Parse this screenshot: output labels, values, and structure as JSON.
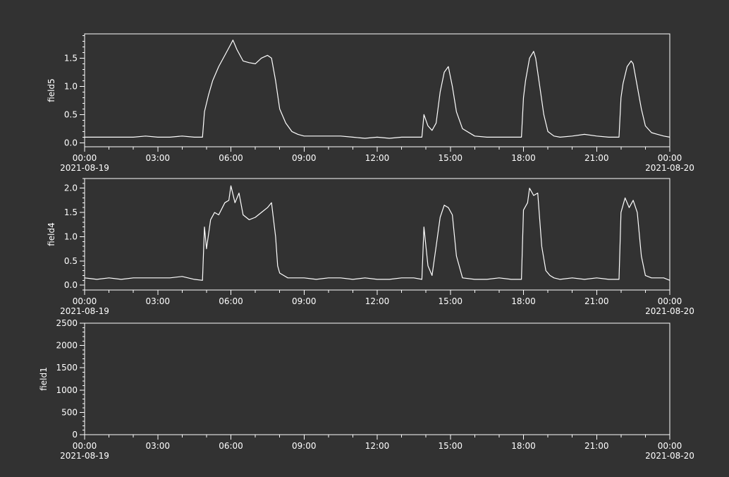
{
  "colors": {
    "background": "#323232",
    "foreground": "#ffffff"
  },
  "chart_data": [
    {
      "type": "line",
      "ylabel": "field5",
      "ylim": [
        -0.07,
        1.93
      ],
      "y_ticks": [
        "0.0",
        "0.5",
        "1.0",
        "1.5"
      ],
      "y_tick_values": [
        0,
        0.5,
        1.0,
        1.5
      ],
      "x_tick_labels": [
        "00:00",
        "03:00",
        "06:00",
        "09:00",
        "12:00",
        "15:00",
        "18:00",
        "21:00",
        "00:00"
      ],
      "x_date_labels": [
        "2021-08-19",
        "2021-08-20"
      ],
      "grid": false,
      "series": [
        {
          "x": [
            "00:00",
            "00:30",
            "01:00",
            "01:30",
            "02:00",
            "02:30",
            "03:00",
            "03:30",
            "04:00",
            "04:30",
            "04:50",
            "04:55",
            "05:05",
            "05:15",
            "05:30",
            "05:45",
            "06:00",
            "06:05",
            "06:15",
            "06:30",
            "06:45",
            "07:00",
            "07:15",
            "07:30",
            "07:40",
            "07:50",
            "08:00",
            "08:15",
            "08:30",
            "08:45",
            "09:00",
            "09:30",
            "10:00",
            "10:30",
            "11:00",
            "11:30",
            "12:00",
            "12:30",
            "13:00",
            "13:30",
            "13:50",
            "13:55",
            "14:05",
            "14:15",
            "14:25",
            "14:35",
            "14:45",
            "14:55",
            "15:05",
            "15:15",
            "15:30",
            "16:00",
            "16:30",
            "17:00",
            "17:30",
            "17:55",
            "18:00",
            "18:05",
            "18:15",
            "18:25",
            "18:30",
            "18:40",
            "18:50",
            "19:00",
            "19:15",
            "19:30",
            "20:00",
            "20:30",
            "21:00",
            "21:30",
            "21:55",
            "22:00",
            "22:05",
            "22:15",
            "22:25",
            "22:30",
            "22:40",
            "22:50",
            "23:00",
            "23:15",
            "23:30",
            "23:45",
            "24:00"
          ],
          "values": [
            0.1,
            0.1,
            0.1,
            0.1,
            0.1,
            0.12,
            0.1,
            0.1,
            0.12,
            0.1,
            0.1,
            0.55,
            0.85,
            1.1,
            1.35,
            1.55,
            1.75,
            1.82,
            1.65,
            1.45,
            1.42,
            1.4,
            1.5,
            1.55,
            1.5,
            1.1,
            0.6,
            0.35,
            0.2,
            0.15,
            0.12,
            0.12,
            0.12,
            0.12,
            0.1,
            0.08,
            0.1,
            0.08,
            0.1,
            0.1,
            0.1,
            0.5,
            0.3,
            0.22,
            0.35,
            0.9,
            1.25,
            1.35,
            1.0,
            0.55,
            0.25,
            0.12,
            0.1,
            0.1,
            0.1,
            0.1,
            0.8,
            1.1,
            1.5,
            1.62,
            1.5,
            1.0,
            0.5,
            0.2,
            0.12,
            0.1,
            0.12,
            0.15,
            0.12,
            0.1,
            0.1,
            0.8,
            1.05,
            1.35,
            1.45,
            1.4,
            1.0,
            0.6,
            0.3,
            0.18,
            0.15,
            0.12,
            0.1
          ]
        }
      ]
    },
    {
      "type": "line",
      "ylabel": "field4",
      "ylim": [
        -0.1,
        2.2
      ],
      "y_ticks": [
        "0.0",
        "0.5",
        "1.0",
        "1.5",
        "2.0"
      ],
      "y_tick_values": [
        0,
        0.5,
        1.0,
        1.5,
        2.0
      ],
      "x_tick_labels": [
        "00:00",
        "03:00",
        "06:00",
        "09:00",
        "12:00",
        "15:00",
        "18:00",
        "21:00",
        "00:00"
      ],
      "x_date_labels": [
        "2021-08-19",
        "2021-08-20"
      ],
      "grid": false,
      "series": [
        {
          "x": [
            "00:00",
            "00:30",
            "01:00",
            "01:30",
            "02:00",
            "02:30",
            "03:00",
            "03:30",
            "04:00",
            "04:30",
            "04:50",
            "04:55",
            "05:00",
            "05:10",
            "05:20",
            "05:30",
            "05:45",
            "05:55",
            "06:00",
            "06:10",
            "06:20",
            "06:30",
            "06:45",
            "07:00",
            "07:15",
            "07:30",
            "07:40",
            "07:50",
            "07:55",
            "08:00",
            "08:10",
            "08:20",
            "08:30",
            "09:00",
            "09:30",
            "10:00",
            "10:30",
            "11:00",
            "11:30",
            "12:00",
            "12:30",
            "13:00",
            "13:30",
            "13:50",
            "13:55",
            "14:05",
            "14:15",
            "14:25",
            "14:35",
            "14:45",
            "14:55",
            "15:05",
            "15:15",
            "15:30",
            "16:00",
            "16:30",
            "17:00",
            "17:30",
            "17:55",
            "18:00",
            "18:10",
            "18:15",
            "18:25",
            "18:35",
            "18:45",
            "18:55",
            "19:05",
            "19:15",
            "19:30",
            "20:00",
            "20:30",
            "21:00",
            "21:30",
            "21:55",
            "22:00",
            "22:10",
            "22:20",
            "22:30",
            "22:40",
            "22:50",
            "23:00",
            "23:15",
            "23:30",
            "23:45",
            "24:00"
          ],
          "values": [
            0.15,
            0.12,
            0.15,
            0.12,
            0.15,
            0.15,
            0.15,
            0.15,
            0.18,
            0.12,
            0.1,
            1.2,
            0.75,
            1.35,
            1.5,
            1.45,
            1.7,
            1.75,
            2.05,
            1.7,
            1.9,
            1.45,
            1.35,
            1.4,
            1.5,
            1.6,
            1.7,
            1.0,
            0.4,
            0.25,
            0.2,
            0.15,
            0.15,
            0.15,
            0.12,
            0.15,
            0.15,
            0.12,
            0.15,
            0.12,
            0.12,
            0.15,
            0.15,
            0.12,
            1.2,
            0.4,
            0.2,
            0.8,
            1.4,
            1.65,
            1.6,
            1.45,
            0.6,
            0.15,
            0.12,
            0.12,
            0.15,
            0.12,
            0.12,
            1.55,
            1.7,
            2.0,
            1.85,
            1.9,
            0.8,
            0.3,
            0.2,
            0.15,
            0.12,
            0.15,
            0.12,
            0.15,
            0.12,
            0.12,
            1.5,
            1.8,
            1.6,
            1.75,
            1.5,
            0.6,
            0.2,
            0.15,
            0.15,
            0.15,
            0.1
          ]
        }
      ]
    },
    {
      "type": "line",
      "ylabel": "field1",
      "ylim": [
        0,
        2500
      ],
      "y_ticks": [
        "0",
        "500",
        "1000",
        "1500",
        "2000",
        "2500"
      ],
      "y_tick_values": [
        0,
        500,
        1000,
        1500,
        2000,
        2500
      ],
      "x_tick_labels": [
        "00:00",
        "03:00",
        "06:00",
        "09:00",
        "12:00",
        "15:00",
        "18:00",
        "21:00",
        "00:00"
      ],
      "x_date_labels": [
        "2021-08-19",
        "2021-08-20"
      ],
      "grid": false,
      "series": []
    }
  ]
}
